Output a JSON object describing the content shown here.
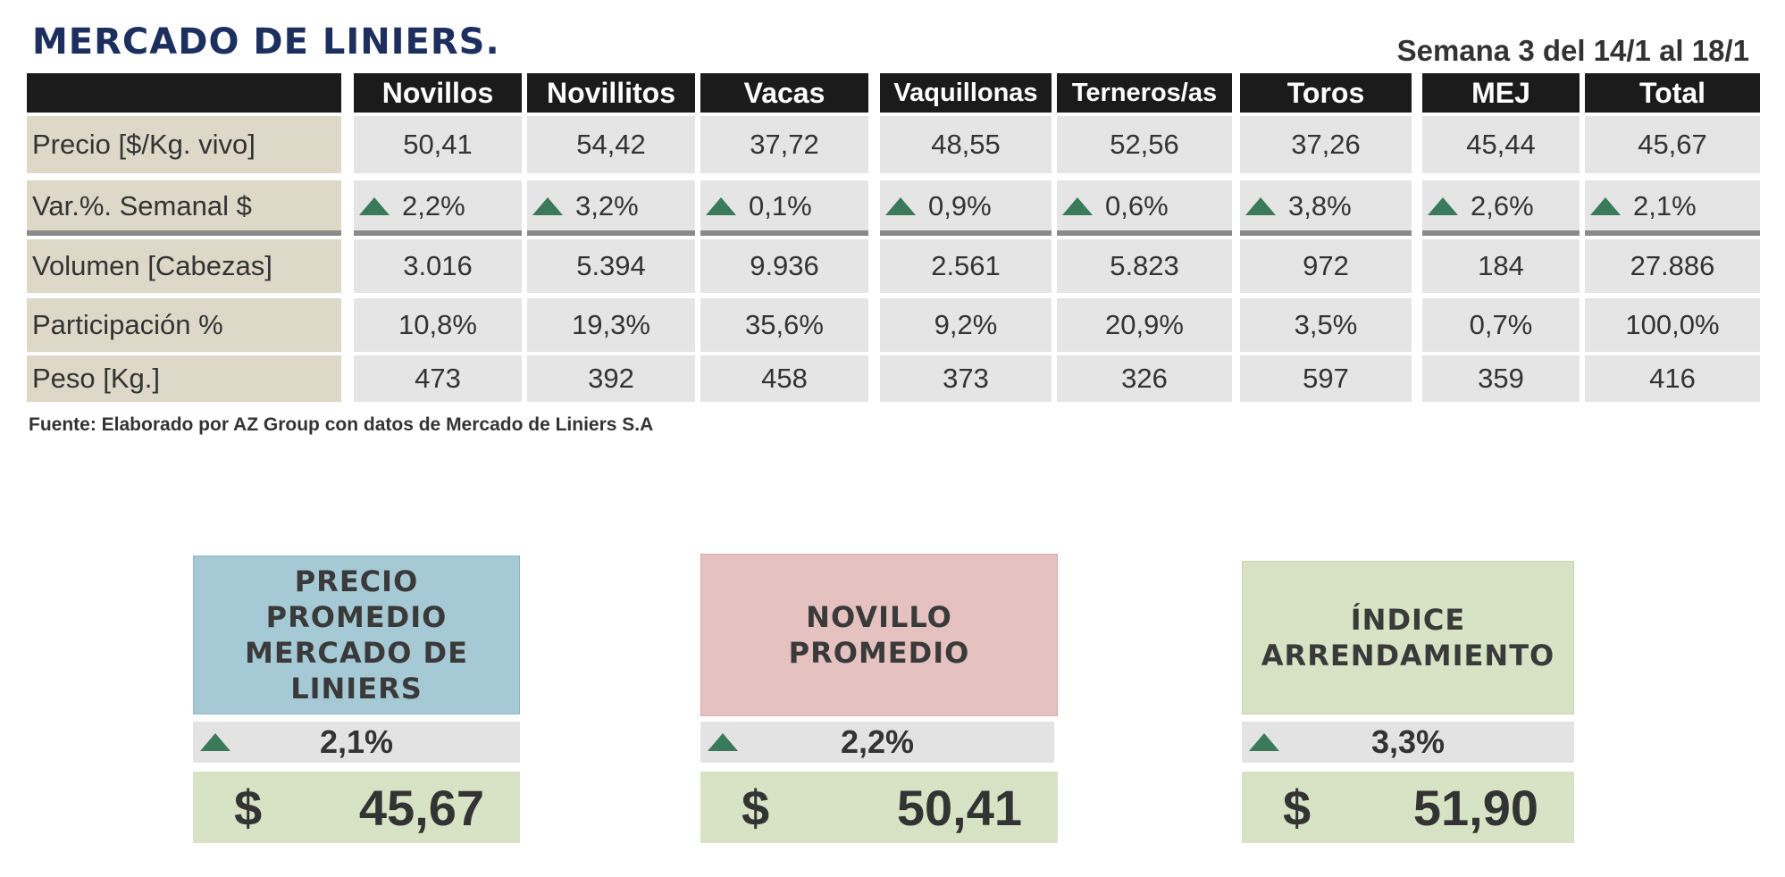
{
  "title": "MERCADO DE LINIERS.",
  "week": "Semana 3 del 14/1 al 18/1",
  "columns": [
    "Novillos",
    "Novillitos",
    "Vacas",
    "Vaquillonas",
    "Terneros/as",
    "Toros",
    "MEJ",
    "Total"
  ],
  "rows": [
    {
      "label": "Precio [$/Kg. vivo]",
      "values": [
        "50,41",
        "54,42",
        "37,72",
        "48,55",
        "52,56",
        "37,26",
        "45,44",
        "45,67"
      ]
    },
    {
      "label": "Var.%. Semanal $",
      "values": [
        "2,2%",
        "3,2%",
        "0,1%",
        "0,9%",
        "0,6%",
        "3,8%",
        "2,6%",
        "2,1%"
      ]
    },
    {
      "label": "Volumen [Cabezas]",
      "values": [
        "3.016",
        "5.394",
        "9.936",
        "2.561",
        "5.823",
        "972",
        "184",
        "27.886"
      ]
    },
    {
      "label": "Participación %",
      "values": [
        "10,8%",
        "19,3%",
        "35,6%",
        "9,2%",
        "20,9%",
        "3,5%",
        "0,7%",
        "100,0%"
      ]
    },
    {
      "label": "Peso  [Kg.]",
      "values": [
        "473",
        "392",
        "458",
        "373",
        "326",
        "597",
        "359",
        "416"
      ]
    }
  ],
  "source": "Fuente: Elaborado por AZ Group con datos de Mercado de Liniers S.A",
  "cards": [
    {
      "title_lines": [
        "PRECIO",
        "PROMEDIO",
        "MERCADO DE",
        "LINIERS"
      ],
      "variation": "2,1%",
      "currency": "$",
      "price": "45,67",
      "color": "#a6cad5"
    },
    {
      "title_lines": [
        "NOVILLO",
        "PROMEDIO"
      ],
      "variation": "2,2%",
      "currency": "$",
      "price": "50,41",
      "color": "#e5c1c0"
    },
    {
      "title_lines": [
        "ÍNDICE",
        "ARRENDAMIENTO"
      ],
      "variation": "3,3%",
      "currency": "$",
      "price": "51,90",
      "color": "#d8e2c4"
    }
  ],
  "colors": {
    "trend_up": "#3a7a5a",
    "header_bg": "#1b1b1b",
    "label_bg": "#ddd8c8",
    "title": "#1c2f5e"
  }
}
